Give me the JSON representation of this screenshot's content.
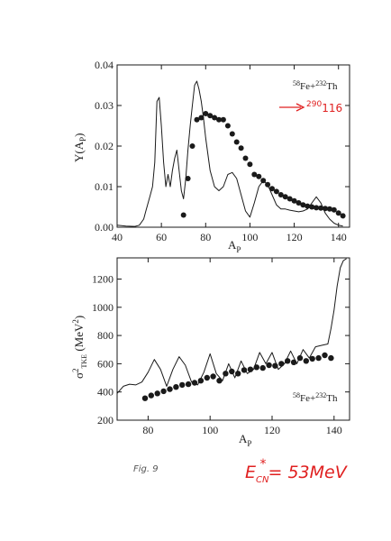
{
  "colors": {
    "ink": "#1a1a1a",
    "red": "#e02020"
  },
  "figure_label": "Fig. 9",
  "energy_label": "E",
  "energy_sub": "CN",
  "energy_sup": "*",
  "energy_value": "= 53MeV",
  "top": {
    "ylabel": "Y(A",
    "ylabel_sub": "P",
    "ylabel_tail": ")",
    "xlabel": "A",
    "xlabel_sub": "P",
    "reaction": {
      "a_mass": "58",
      "a_el": "Fe+",
      "b_mass": "232",
      "b_el": "Th"
    },
    "compound": {
      "mass": "290",
      "z": "116"
    }
  },
  "bottom": {
    "ylabel": "σ",
    "ylabel_sup": "2",
    "ylabel_sub": "TKE",
    "ylabel_tail": " (MeV",
    "ylabel_unit_sup": "2",
    "ylabel_close": ")",
    "xlabel": "A",
    "xlabel_sub": "P",
    "reaction": {
      "a_mass": "58",
      "a_el": "Fe+",
      "b_mass": "232",
      "b_el": "Th"
    }
  },
  "chart_data": [
    {
      "type": "line",
      "xlabel": "AP",
      "ylabel": "Y(AP)",
      "xlim": [
        40,
        145
      ],
      "ylim": [
        0.0,
        0.04
      ],
      "xticks": [
        "40",
        "60",
        "80",
        "100",
        "120",
        "140"
      ],
      "xtick_values": [
        40,
        60,
        80,
        100,
        120,
        140
      ],
      "yticks": [
        "0.00",
        "0.01",
        "0.02",
        "0.03",
        "0.04"
      ],
      "ytick_values": [
        0.0,
        0.01,
        0.02,
        0.03,
        0.04
      ],
      "series": [
        {
          "style": "line",
          "x": [
            40,
            44,
            48,
            50,
            52,
            53,
            54,
            55,
            56,
            57,
            58,
            59,
            60,
            61,
            62,
            63,
            64,
            65,
            66,
            67,
            68,
            69,
            70,
            71,
            72,
            73,
            74,
            75,
            76,
            77,
            78,
            79,
            80,
            82,
            84,
            86,
            88,
            90,
            92,
            94,
            96,
            98,
            100,
            102,
            104,
            106,
            108,
            110,
            112,
            114,
            116,
            118,
            120,
            122,
            124,
            126,
            128,
            130,
            132,
            134,
            136,
            138,
            140,
            142
          ],
          "y": [
            0.0005,
            0.0003,
            0.0002,
            0.0005,
            0.002,
            0.004,
            0.006,
            0.008,
            0.01,
            0.016,
            0.031,
            0.032,
            0.025,
            0.016,
            0.01,
            0.013,
            0.01,
            0.014,
            0.017,
            0.019,
            0.014,
            0.009,
            0.007,
            0.012,
            0.019,
            0.025,
            0.03,
            0.035,
            0.036,
            0.034,
            0.031,
            0.027,
            0.022,
            0.014,
            0.01,
            0.009,
            0.01,
            0.013,
            0.0135,
            0.012,
            0.008,
            0.004,
            0.0025,
            0.006,
            0.01,
            0.0115,
            0.0105,
            0.008,
            0.0055,
            0.0045,
            0.0045,
            0.0042,
            0.004,
            0.0038,
            0.004,
            0.0045,
            0.006,
            0.0075,
            0.006,
            0.0035,
            0.002,
            0.001,
            0.0005,
            0.0003
          ]
        },
        {
          "style": "points",
          "x": [
            70,
            72,
            74,
            76,
            78,
            80,
            82,
            84,
            86,
            88,
            90,
            92,
            94,
            96,
            98,
            100,
            102,
            104,
            106,
            108,
            110,
            112,
            114,
            116,
            118,
            120,
            122,
            124,
            126,
            128,
            130,
            132,
            134,
            136,
            138,
            140,
            142
          ],
          "y": [
            0.003,
            0.012,
            0.02,
            0.0265,
            0.027,
            0.028,
            0.0275,
            0.027,
            0.0265,
            0.0265,
            0.025,
            0.023,
            0.021,
            0.0195,
            0.017,
            0.0155,
            0.013,
            0.0125,
            0.0115,
            0.0105,
            0.0095,
            0.0088,
            0.008,
            0.0075,
            0.007,
            0.0065,
            0.006,
            0.0055,
            0.0052,
            0.005,
            0.0048,
            0.0047,
            0.0046,
            0.0045,
            0.0043,
            0.0035,
            0.0028
          ]
        }
      ]
    },
    {
      "type": "line",
      "xlabel": "AP",
      "ylabel": "σ2TKE (MeV2)",
      "xlim": [
        70,
        145
      ],
      "ylim": [
        200,
        1350
      ],
      "xticks": [
        "80",
        "100",
        "120",
        "140"
      ],
      "xtick_values": [
        80,
        100,
        120,
        140
      ],
      "yticks": [
        "200",
        "400",
        "600",
        "800",
        "1000",
        "1200"
      ],
      "ytick_values": [
        200,
        400,
        600,
        800,
        1000,
        1200
      ],
      "series": [
        {
          "style": "line",
          "x": [
            70,
            72,
            74,
            76,
            78,
            80,
            82,
            84,
            86,
            88,
            90,
            92,
            94,
            96,
            98,
            100,
            102,
            104,
            106,
            108,
            110,
            112,
            114,
            116,
            118,
            120,
            122,
            124,
            126,
            128,
            130,
            132,
            134,
            136,
            138,
            139,
            140,
            141,
            142,
            143,
            144
          ],
          "y": [
            390,
            440,
            455,
            450,
            470,
            540,
            630,
            560,
            440,
            560,
            650,
            590,
            470,
            450,
            540,
            670,
            530,
            480,
            600,
            500,
            620,
            530,
            560,
            680,
            600,
            680,
            560,
            600,
            690,
            600,
            700,
            640,
            720,
            730,
            740,
            850,
            980,
            1150,
            1280,
            1330,
            1345
          ]
        },
        {
          "style": "points",
          "x": [
            79,
            81,
            83,
            85,
            87,
            89,
            91,
            93,
            95,
            97,
            99,
            101,
            103,
            105,
            107,
            109,
            111,
            113,
            115,
            117,
            119,
            121,
            123,
            125,
            127,
            129,
            131,
            133,
            135,
            137,
            139
          ],
          "y": [
            355,
            375,
            390,
            405,
            420,
            435,
            450,
            455,
            465,
            480,
            500,
            510,
            480,
            530,
            545,
            530,
            555,
            560,
            575,
            570,
            590,
            585,
            600,
            620,
            610,
            640,
            620,
            635,
            640,
            660,
            640
          ]
        }
      ]
    }
  ]
}
